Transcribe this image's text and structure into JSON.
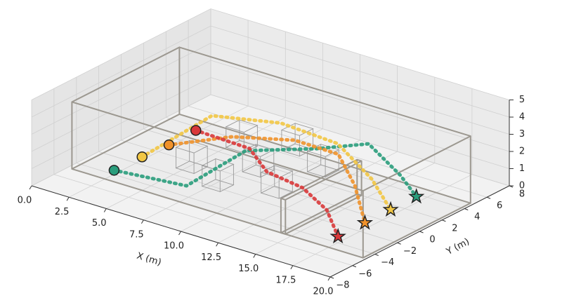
{
  "chart_data": {
    "type": "line3d",
    "xlabel": "X (m)",
    "ylabel": "Y (m)",
    "xlim": [
      0,
      20
    ],
    "ylim": [
      -8,
      8
    ],
    "zlim": [
      0,
      5
    ],
    "xticks": [
      {
        "value": 0,
        "label": "0.0"
      },
      2.5,
      {
        "value": 5,
        "label": "5.0"
      },
      7.5,
      {
        "value": 10,
        "label": "10.0"
      },
      12.5,
      {
        "value": 15,
        "label": "15.0"
      },
      17.5,
      {
        "value": 20,
        "label": "20.0"
      }
    ],
    "yticks": [
      {
        "value": -8,
        "label": "−8"
      },
      {
        "value": -6,
        "label": "−6"
      },
      {
        "value": -4,
        "label": "−4"
      },
      {
        "value": -2,
        "label": "−2"
      },
      0,
      2,
      4,
      6,
      8
    ],
    "zticks": [
      0,
      1,
      2,
      3,
      4,
      5
    ],
    "grid": true,
    "walls": [
      [
        0.3,
        19.8,
        -4.8,
        4.8,
        0,
        3.9
      ],
      [
        14.3,
        14.6,
        -4.8,
        2,
        0,
        2
      ]
    ],
    "obstacles": [
      [
        6,
        -3.1,
        1
      ],
      [
        7.6,
        -2.9,
        0.3
      ],
      [
        7.1,
        -0.1,
        1.5
      ],
      [
        8.8,
        -0.9,
        0.8
      ],
      [
        10.2,
        -1.1,
        0
      ],
      [
        9.7,
        1.4,
        1.5
      ],
      [
        11.8,
        0.9,
        1
      ]
    ],
    "obstacle_size": 1.2,
    "series": [
      {
        "color": "#2a9d7c",
        "x": [
          5,
          7.9,
          8.2,
          11.4,
          13.2,
          15.7,
          17
        ],
        "y": [
          -7.3,
          -4.7,
          0.2,
          2.2,
          4.5,
          4.0,
          3.7
        ],
        "z": [
          2,
          1,
          1.5,
          1.8,
          1.8,
          0.8,
          0
        ]
      },
      {
        "color": "#f2c744",
        "x": [
          5,
          6.3,
          9.8,
          13.3,
          15.5,
          17
        ],
        "y": [
          -4.8,
          -0.3,
          1.2,
          1.6,
          1.7,
          1.4
        ],
        "z": [
          1.95,
          3.2,
          3.2,
          2.8,
          1.3,
          0
        ]
      },
      {
        "color": "#f0922b",
        "x": [
          5,
          7.9,
          10.8,
          13.5,
          15.2,
          17
        ],
        "y": [
          -2.4,
          -0.6,
          1.1,
          1.4,
          0.6,
          -0.9
        ],
        "z": [
          1.85,
          2.5,
          2.5,
          2.3,
          1.2,
          0
        ]
      },
      {
        "color": "#d9383a",
        "x": [
          5,
          8.6,
          10.8,
          13.2,
          15.2,
          17
        ],
        "y": [
          0,
          0,
          -1.4,
          -1.4,
          -1.9,
          -3.3
        ],
        "z": [
          1.9,
          1.8,
          1.5,
          1.2,
          0.6,
          0
        ]
      }
    ]
  }
}
